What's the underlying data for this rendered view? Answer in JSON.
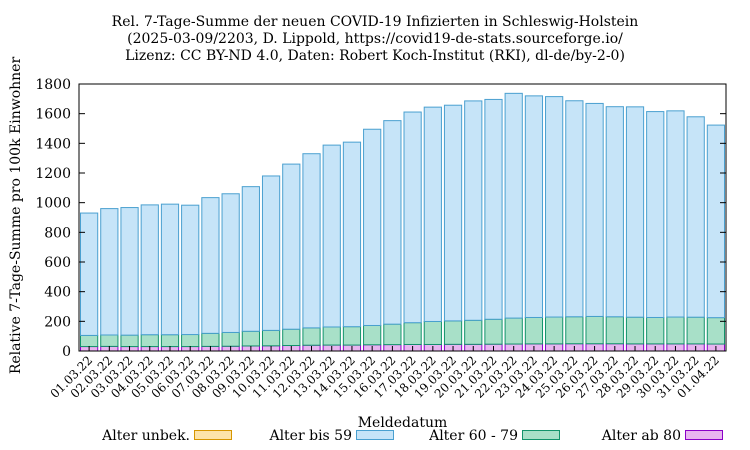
{
  "chart_data": {
    "type": "bar",
    "stacked": true,
    "title_lines": [
      "Rel. 7-Tage-Summe der neuen COVID-19 Infizierten in Schleswig-Holstein",
      "(2025-03-09/2203, D. Lippold, https://covid19-de-stats.sourceforge.io/",
      "Lizenz: CC BY-ND 4.0, Daten: Robert Koch-Institut (RKI), dl-de/by-2-0)"
    ],
    "xlabel": "Meldedatum",
    "ylabel": "Relative 7-Tage-Summe pro 100k Einwohner",
    "ylim": [
      0,
      1800
    ],
    "yticks": [
      0,
      200,
      400,
      600,
      800,
      1000,
      1200,
      1400,
      1600,
      1800
    ],
    "categories": [
      "01.03.22",
      "02.03.22",
      "03.03.22",
      "04.03.22",
      "05.03.22",
      "06.03.22",
      "07.03.22",
      "08.03.22",
      "09.03.22",
      "10.03.22",
      "11.03.22",
      "12.03.22",
      "13.03.22",
      "14.03.22",
      "15.03.22",
      "16.03.22",
      "17.03.22",
      "18.03.22",
      "19.03.22",
      "20.03.22",
      "21.03.22",
      "22.03.22",
      "23.03.22",
      "24.03.22",
      "25.03.22",
      "26.03.22",
      "27.03.22",
      "28.03.22",
      "29.03.22",
      "30.03.22",
      "31.03.22",
      "01.04.22"
    ],
    "series": [
      {
        "name": "Alter ab 80",
        "color": "#e8b4f0",
        "edge": "#8b00c8",
        "values": [
          30,
          31,
          30,
          30,
          30,
          30,
          31,
          32,
          34,
          35,
          37,
          39,
          40,
          40,
          42,
          43,
          44,
          44,
          45,
          45,
          46,
          47,
          48,
          48,
          49,
          49,
          49,
          48,
          48,
          48,
          48,
          47
        ]
      },
      {
        "name": "Alter 60 - 79",
        "color": "#a8e0c8",
        "edge": "#12936b",
        "values": [
          75,
          77,
          77,
          80,
          80,
          81,
          88,
          93,
          99,
          104,
          110,
          117,
          122,
          124,
          130,
          138,
          147,
          155,
          158,
          162,
          168,
          175,
          178,
          181,
          182,
          184,
          182,
          180,
          178,
          181,
          180,
          178
        ]
      },
      {
        "name": "Alter bis 59",
        "color": "#c6e4f8",
        "edge": "#4aa0d0",
        "values": [
          825,
          852,
          860,
          875,
          880,
          872,
          915,
          935,
          975,
          1041,
          1113,
          1174,
          1226,
          1244,
          1323,
          1372,
          1420,
          1445,
          1454,
          1479,
          1482,
          1515,
          1494,
          1486,
          1456,
          1436,
          1416,
          1418,
          1388,
          1390,
          1351,
          1298
        ]
      },
      {
        "name": "Alter unbek.",
        "color": "#fde3a8",
        "edge": "#d69600",
        "values": [
          0,
          0,
          0,
          0,
          0,
          0,
          0,
          0,
          0,
          0,
          0,
          0,
          0,
          0,
          0,
          0,
          0,
          0,
          0,
          0,
          0,
          0,
          0,
          0,
          0,
          0,
          0,
          0,
          0,
          0,
          0,
          0
        ]
      }
    ],
    "legend": [
      {
        "label": "Alter unbek.",
        "color": "#fde3a8",
        "edge": "#d69600"
      },
      {
        "label": "Alter bis 59",
        "color": "#c6e4f8",
        "edge": "#4aa0d0"
      },
      {
        "label": "Alter 60 - 79",
        "color": "#a8e0c8",
        "edge": "#12936b"
      },
      {
        "label": "Alter ab 80",
        "color": "#e8b4f0",
        "edge": "#8b00c8"
      }
    ],
    "legend_position": "bottom",
    "grid": false
  }
}
